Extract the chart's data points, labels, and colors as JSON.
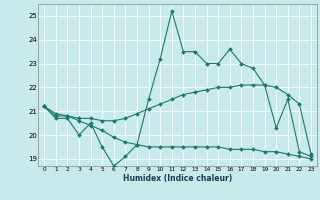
{
  "xlabel": "Humidex (Indice chaleur)",
  "ylabel": "",
  "xlim": [
    -0.5,
    23.5
  ],
  "ylim": [
    18.7,
    25.5
  ],
  "yticks": [
    19,
    20,
    21,
    22,
    23,
    24,
    25
  ],
  "xticks": [
    0,
    1,
    2,
    3,
    4,
    5,
    6,
    7,
    8,
    9,
    10,
    11,
    12,
    13,
    14,
    15,
    16,
    17,
    18,
    19,
    20,
    21,
    22,
    23
  ],
  "background_color": "#c8eaea",
  "grid_color": "#ffffff",
  "line_color": "#1a7a6a",
  "line1_y": [
    21.2,
    20.7,
    20.7,
    20.0,
    20.5,
    19.5,
    18.7,
    19.1,
    19.6,
    21.5,
    23.2,
    25.2,
    23.5,
    23.5,
    23.0,
    23.0,
    23.6,
    23.0,
    22.8,
    22.1,
    20.3,
    21.5,
    19.3,
    19.1
  ],
  "line2_y": [
    21.2,
    20.8,
    20.8,
    20.7,
    20.7,
    20.6,
    20.6,
    20.7,
    20.9,
    21.1,
    21.3,
    21.5,
    21.7,
    21.8,
    21.9,
    22.0,
    22.0,
    22.1,
    22.1,
    22.1,
    22.0,
    21.7,
    21.3,
    19.2
  ],
  "line3_y": [
    21.2,
    20.9,
    20.8,
    20.6,
    20.4,
    20.2,
    19.9,
    19.7,
    19.6,
    19.5,
    19.5,
    19.5,
    19.5,
    19.5,
    19.5,
    19.5,
    19.4,
    19.4,
    19.4,
    19.3,
    19.3,
    19.2,
    19.1,
    19.0
  ],
  "marker_style": "D",
  "marker_size": 2.0,
  "linewidth": 0.8
}
